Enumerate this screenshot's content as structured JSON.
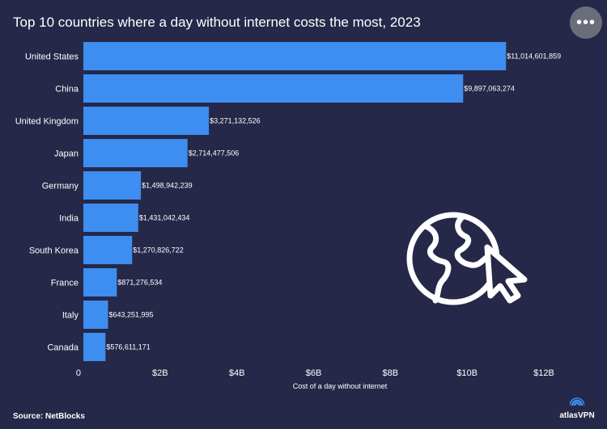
{
  "title": "Top 10 countries where a day without internet costs the most, 2023",
  "menu": {
    "label": "•••"
  },
  "source": "Source: NetBlocks",
  "brand": {
    "name": "atlasVPN",
    "icon": "atlasvpn-logo-icon"
  },
  "decoration": {
    "icon": "globe-cursor-icon"
  },
  "colors": {
    "background": "#262849",
    "bar": "#3d8ef0",
    "text": "#ffffff"
  },
  "chart_data": {
    "type": "bar",
    "orientation": "horizontal",
    "categories": [
      "United States",
      "China",
      "United Kingdom",
      "Japan",
      "Germany",
      "India",
      "South Korea",
      "France",
      "Italy",
      "Canada"
    ],
    "values": [
      11014601859,
      9897063274,
      3271132526,
      2714477506,
      1498942239,
      1431042434,
      1270826722,
      871276534,
      643251995,
      576611171
    ],
    "data_labels": [
      "$11,014,601,859",
      "$9,897,063,274",
      "$3,271,132,526",
      "$2,714,477,506",
      "$1,498,942,239",
      "$1,431,042,434",
      "$1,270,826,722",
      "$871,276,534",
      "$643,251,995",
      "$576,611,171"
    ],
    "title": "Top 10 countries where a day without internet costs the most, 2023",
    "xlabel": "Cost of a day without internet",
    "ylabel": "",
    "xlim": [
      0,
      12000000000
    ],
    "x_ticks": [
      0,
      2000000000,
      4000000000,
      6000000000,
      8000000000,
      10000000000,
      12000000000
    ],
    "x_tick_labels": [
      "0",
      "$2B",
      "$4B",
      "$6B",
      "$8B",
      "$10B",
      "$12B"
    ],
    "grid": false,
    "legend": "none"
  }
}
